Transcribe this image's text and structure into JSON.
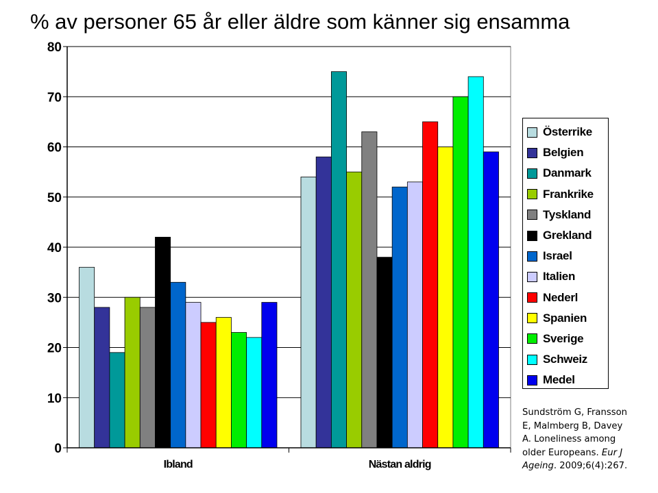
{
  "chart_data": {
    "type": "bar",
    "title": "% av personer 65 år eller äldre som känner sig ensamma",
    "xlabel": "",
    "ylabel": "",
    "ylim": [
      0,
      80
    ],
    "yticks": [
      0,
      10,
      20,
      30,
      40,
      50,
      60,
      70,
      80
    ],
    "grid": true,
    "legend_position": "right",
    "categories": [
      "Ibland",
      "Nästan aldrig"
    ],
    "series": [
      {
        "name": "Österrike",
        "color": "#b8dce0",
        "values": [
          36,
          54
        ]
      },
      {
        "name": "Belgien",
        "color": "#333399",
        "values": [
          28,
          58
        ]
      },
      {
        "name": "Danmark",
        "color": "#009999",
        "values": [
          19,
          75
        ]
      },
      {
        "name": "Frankrike",
        "color": "#99cc00",
        "values": [
          30,
          55
        ]
      },
      {
        "name": "Tyskland",
        "color": "#808080",
        "values": [
          28,
          63
        ]
      },
      {
        "name": "Grekland",
        "color": "#000000",
        "values": [
          42,
          38
        ]
      },
      {
        "name": "Israel",
        "color": "#0066cc",
        "values": [
          33,
          52
        ]
      },
      {
        "name": "Italien",
        "color": "#ccccff",
        "values": [
          29,
          53
        ]
      },
      {
        "name": "Nederl",
        "color": "#ff0000",
        "values": [
          25,
          65
        ]
      },
      {
        "name": "Spanien",
        "color": "#ffff00",
        "values": [
          26,
          60
        ]
      },
      {
        "name": "Sverige",
        "color": "#00ee00",
        "values": [
          23,
          70
        ]
      },
      {
        "name": "Schweiz",
        "color": "#00ffff",
        "values": [
          22,
          74
        ]
      },
      {
        "name": "Medel",
        "color": "#0000ee",
        "values": [
          29,
          59
        ]
      }
    ]
  },
  "source": {
    "line1": "Sundström G, Fransson",
    "line2": "E, Malmberg B, Davey",
    "line3": "A. Loneliness among",
    "line4_pre": "older Europeans. ",
    "line4_ital": "Eur J",
    "line5_ital": "Ageing",
    "line5_post": ". 2009;6(4):267."
  }
}
